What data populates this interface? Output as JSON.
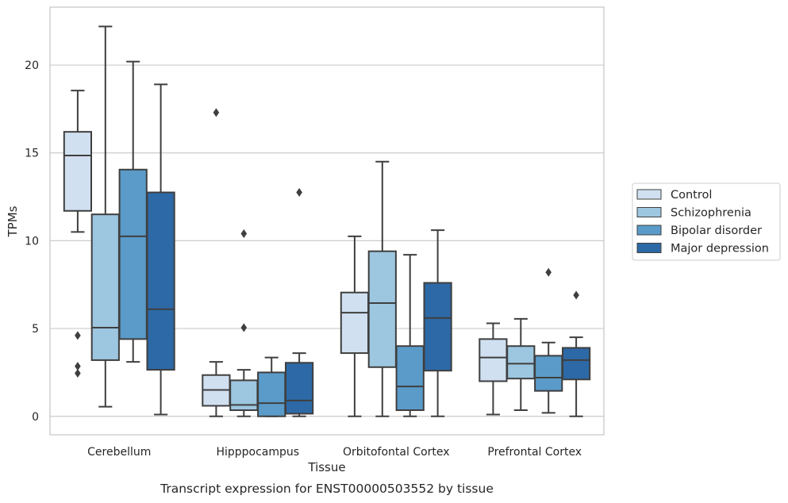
{
  "chart_data": {
    "type": "box",
    "title": "Transcript expression for ENST00000503552 by tissue",
    "xlabel": "Tissue",
    "ylabel": "TPMs",
    "categories": [
      "Cerebellum",
      "Hipppocampus",
      "Orbitofontal Cortex",
      "Prefrontal Cortex"
    ],
    "ylim": [
      -1.05,
      23.3
    ],
    "yticks": [
      0,
      5,
      10,
      15,
      20
    ],
    "grid": true,
    "legend_position": "right",
    "series": [
      {
        "name": "Control",
        "color": "#d0e0f0",
        "boxes": [
          {
            "whislo": 10.5,
            "q1": 11.7,
            "med": 14.85,
            "q3": 16.2,
            "whishi": 18.55,
            "fliers": [
              4.6,
              2.85,
              2.45
            ]
          },
          {
            "whislo": 0.0,
            "q1": 0.6,
            "med": 1.5,
            "q3": 2.35,
            "whishi": 3.1,
            "fliers": [
              17.3
            ]
          },
          {
            "whislo": 0.0,
            "q1": 3.6,
            "med": 5.9,
            "q3": 7.05,
            "whishi": 10.25,
            "fliers": []
          },
          {
            "whislo": 0.1,
            "q1": 2.0,
            "med": 3.35,
            "q3": 4.4,
            "whishi": 5.3,
            "fliers": []
          }
        ]
      },
      {
        "name": "Schizophrenia",
        "color": "#9dc6e0",
        "boxes": [
          {
            "whislo": 0.55,
            "q1": 3.2,
            "med": 5.05,
            "q3": 11.5,
            "whishi": 22.2,
            "fliers": []
          },
          {
            "whislo": 0.0,
            "q1": 0.35,
            "med": 0.65,
            "q3": 2.05,
            "whishi": 2.65,
            "fliers": [
              10.4,
              5.05
            ]
          },
          {
            "whislo": 0.0,
            "q1": 2.8,
            "med": 6.45,
            "q3": 9.4,
            "whishi": 14.5,
            "fliers": []
          },
          {
            "whislo": 0.35,
            "q1": 2.15,
            "med": 3.0,
            "q3": 4.0,
            "whishi": 5.55,
            "fliers": []
          }
        ]
      },
      {
        "name": "Bipolar disorder",
        "color": "#5a9bc9",
        "boxes": [
          {
            "whislo": 3.1,
            "q1": 4.4,
            "med": 10.25,
            "q3": 14.05,
            "whishi": 20.2,
            "fliers": []
          },
          {
            "whislo": 0.0,
            "q1": 0.0,
            "med": 0.75,
            "q3": 2.5,
            "whishi": 3.35,
            "fliers": []
          },
          {
            "whislo": 0.0,
            "q1": 0.35,
            "med": 1.7,
            "q3": 4.0,
            "whishi": 9.2,
            "fliers": []
          },
          {
            "whislo": 0.2,
            "q1": 1.45,
            "med": 2.2,
            "q3": 3.45,
            "whishi": 4.2,
            "fliers": [
              8.2
            ]
          }
        ]
      },
      {
        "name": "Major depression",
        "color": "#2d69a6",
        "boxes": [
          {
            "whislo": 0.1,
            "q1": 2.65,
            "med": 6.1,
            "q3": 12.75,
            "whishi": 18.9,
            "fliers": []
          },
          {
            "whislo": 0.0,
            "q1": 0.15,
            "med": 0.9,
            "q3": 3.05,
            "whishi": 3.6,
            "fliers": [
              12.75
            ]
          },
          {
            "whislo": 0.0,
            "q1": 2.6,
            "med": 5.6,
            "q3": 7.6,
            "whishi": 10.6,
            "fliers": []
          },
          {
            "whislo": 0.0,
            "q1": 2.1,
            "med": 3.2,
            "q3": 3.9,
            "whishi": 4.5,
            "fliers": [
              6.9
            ]
          }
        ]
      }
    ]
  }
}
